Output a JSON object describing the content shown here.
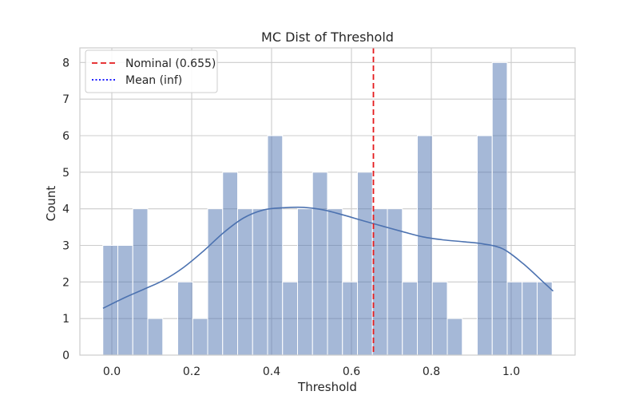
{
  "chart_data": {
    "type": "bar",
    "title": "MC Dist of Threshold",
    "xlabel": "Threshold",
    "ylabel": "Count",
    "xlim": [
      -0.08,
      1.16
    ],
    "ylim": [
      0,
      8.4
    ],
    "xticks": [
      0.0,
      0.2,
      0.4,
      0.6,
      0.8,
      1.0
    ],
    "xtick_labels": [
      "0.0",
      "0.2",
      "0.4",
      "0.6",
      "0.8",
      "1.0"
    ],
    "yticks": [
      0,
      1,
      2,
      3,
      4,
      5,
      6,
      7,
      8
    ],
    "ytick_labels": [
      "0",
      "1",
      "2",
      "3",
      "4",
      "5",
      "6",
      "7",
      "8"
    ],
    "grid": true,
    "legend_position": "top-left",
    "bins": {
      "start": -0.0225,
      "width": 0.0375,
      "counts": [
        3,
        3,
        4,
        1,
        0,
        2,
        1,
        4,
        5,
        4,
        4,
        6,
        2,
        4,
        5,
        4,
        2,
        5,
        4,
        4,
        2,
        6,
        2,
        1,
        0,
        6,
        8,
        2,
        2,
        2
      ]
    },
    "kde": {
      "x": [
        -0.022,
        0.03,
        0.08,
        0.13,
        0.18,
        0.23,
        0.28,
        0.33,
        0.38,
        0.43,
        0.48,
        0.53,
        0.58,
        0.63,
        0.68,
        0.73,
        0.78,
        0.83,
        0.88,
        0.93,
        0.98,
        1.03,
        1.08,
        1.105
      ],
      "y": [
        1.28,
        1.56,
        1.8,
        2.05,
        2.4,
        2.85,
        3.35,
        3.75,
        3.97,
        4.03,
        4.04,
        3.97,
        3.83,
        3.67,
        3.52,
        3.37,
        3.23,
        3.15,
        3.1,
        3.04,
        2.9,
        2.5,
        2.0,
        1.75
      ]
    },
    "reference_lines": [
      {
        "label": "Nominal (0.655)",
        "x": 0.655,
        "color": "#e41a1c",
        "style": "dashed"
      },
      {
        "label": "Mean (inf)",
        "x": null,
        "color": "#0000ff",
        "style": "dotted"
      }
    ],
    "colors": {
      "bar_fill": "#4c72b0",
      "bar_opacity": 0.5,
      "kde_line": "#4c72b0",
      "grid": "#cccccc",
      "axes": "#cccccc"
    }
  }
}
